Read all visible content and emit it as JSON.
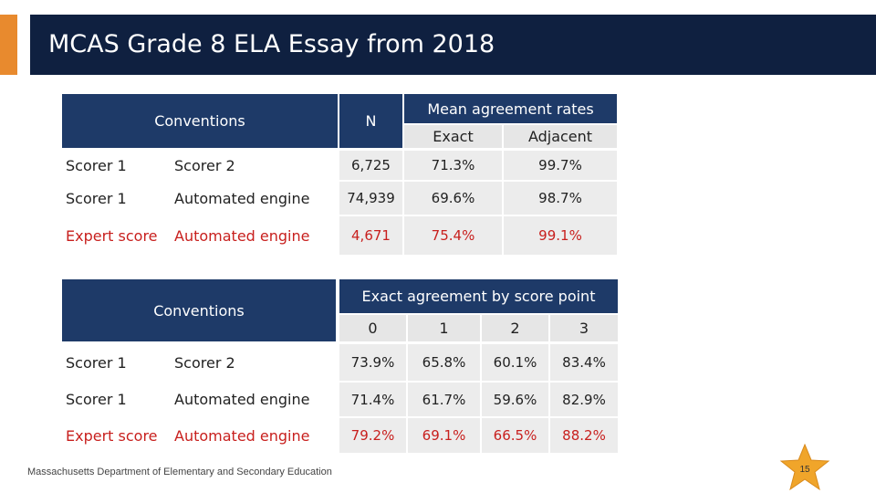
{
  "title": "MCAS Grade 8 ELA Essay from 2018",
  "table1": {
    "conventions_header": "Conventions",
    "n_header": "N",
    "rates_header": "Mean agreement rates",
    "exact_header": "Exact",
    "adjacent_header": "Adjacent",
    "rows": [
      {
        "a": "Scorer 1",
        "b": "Scorer 2",
        "n": "6,725",
        "exact": "71.3%",
        "adjacent": "99.7%"
      },
      {
        "a": "Scorer 1",
        "b": "Automated engine",
        "n": "74,939",
        "exact": "69.6%",
        "adjacent": "98.7%"
      },
      {
        "a": "Expert score",
        "b": "Automated engine",
        "n": "4,671",
        "exact": "75.4%",
        "adjacent": "99.1%"
      }
    ]
  },
  "table2": {
    "conventions_header": "Conventions",
    "exact_header": "Exact agreement by score point",
    "score_points": [
      "0",
      "1",
      "2",
      "3"
    ],
    "rows": [
      {
        "a": "Scorer 1",
        "b": "Scorer 2",
        "values": [
          "73.9%",
          "65.8%",
          "60.1%",
          "83.4%"
        ]
      },
      {
        "a": "Scorer 1",
        "b": "Automated engine",
        "values": [
          "71.4%",
          "61.7%",
          "59.6%",
          "82.9%"
        ]
      },
      {
        "a": "Expert score",
        "b": "Automated engine",
        "values": [
          "79.2%",
          "69.1%",
          "66.5%",
          "88.2%"
        ]
      }
    ]
  },
  "footer": "Massachusetts Department of Elementary and Secondary Education",
  "page_number": "15",
  "colors": {
    "accent": "#e88a2e",
    "title_bar": "#0f2040",
    "header": "#1e3a68",
    "highlight_red": "#c8201e",
    "star": "#f0a52a"
  }
}
